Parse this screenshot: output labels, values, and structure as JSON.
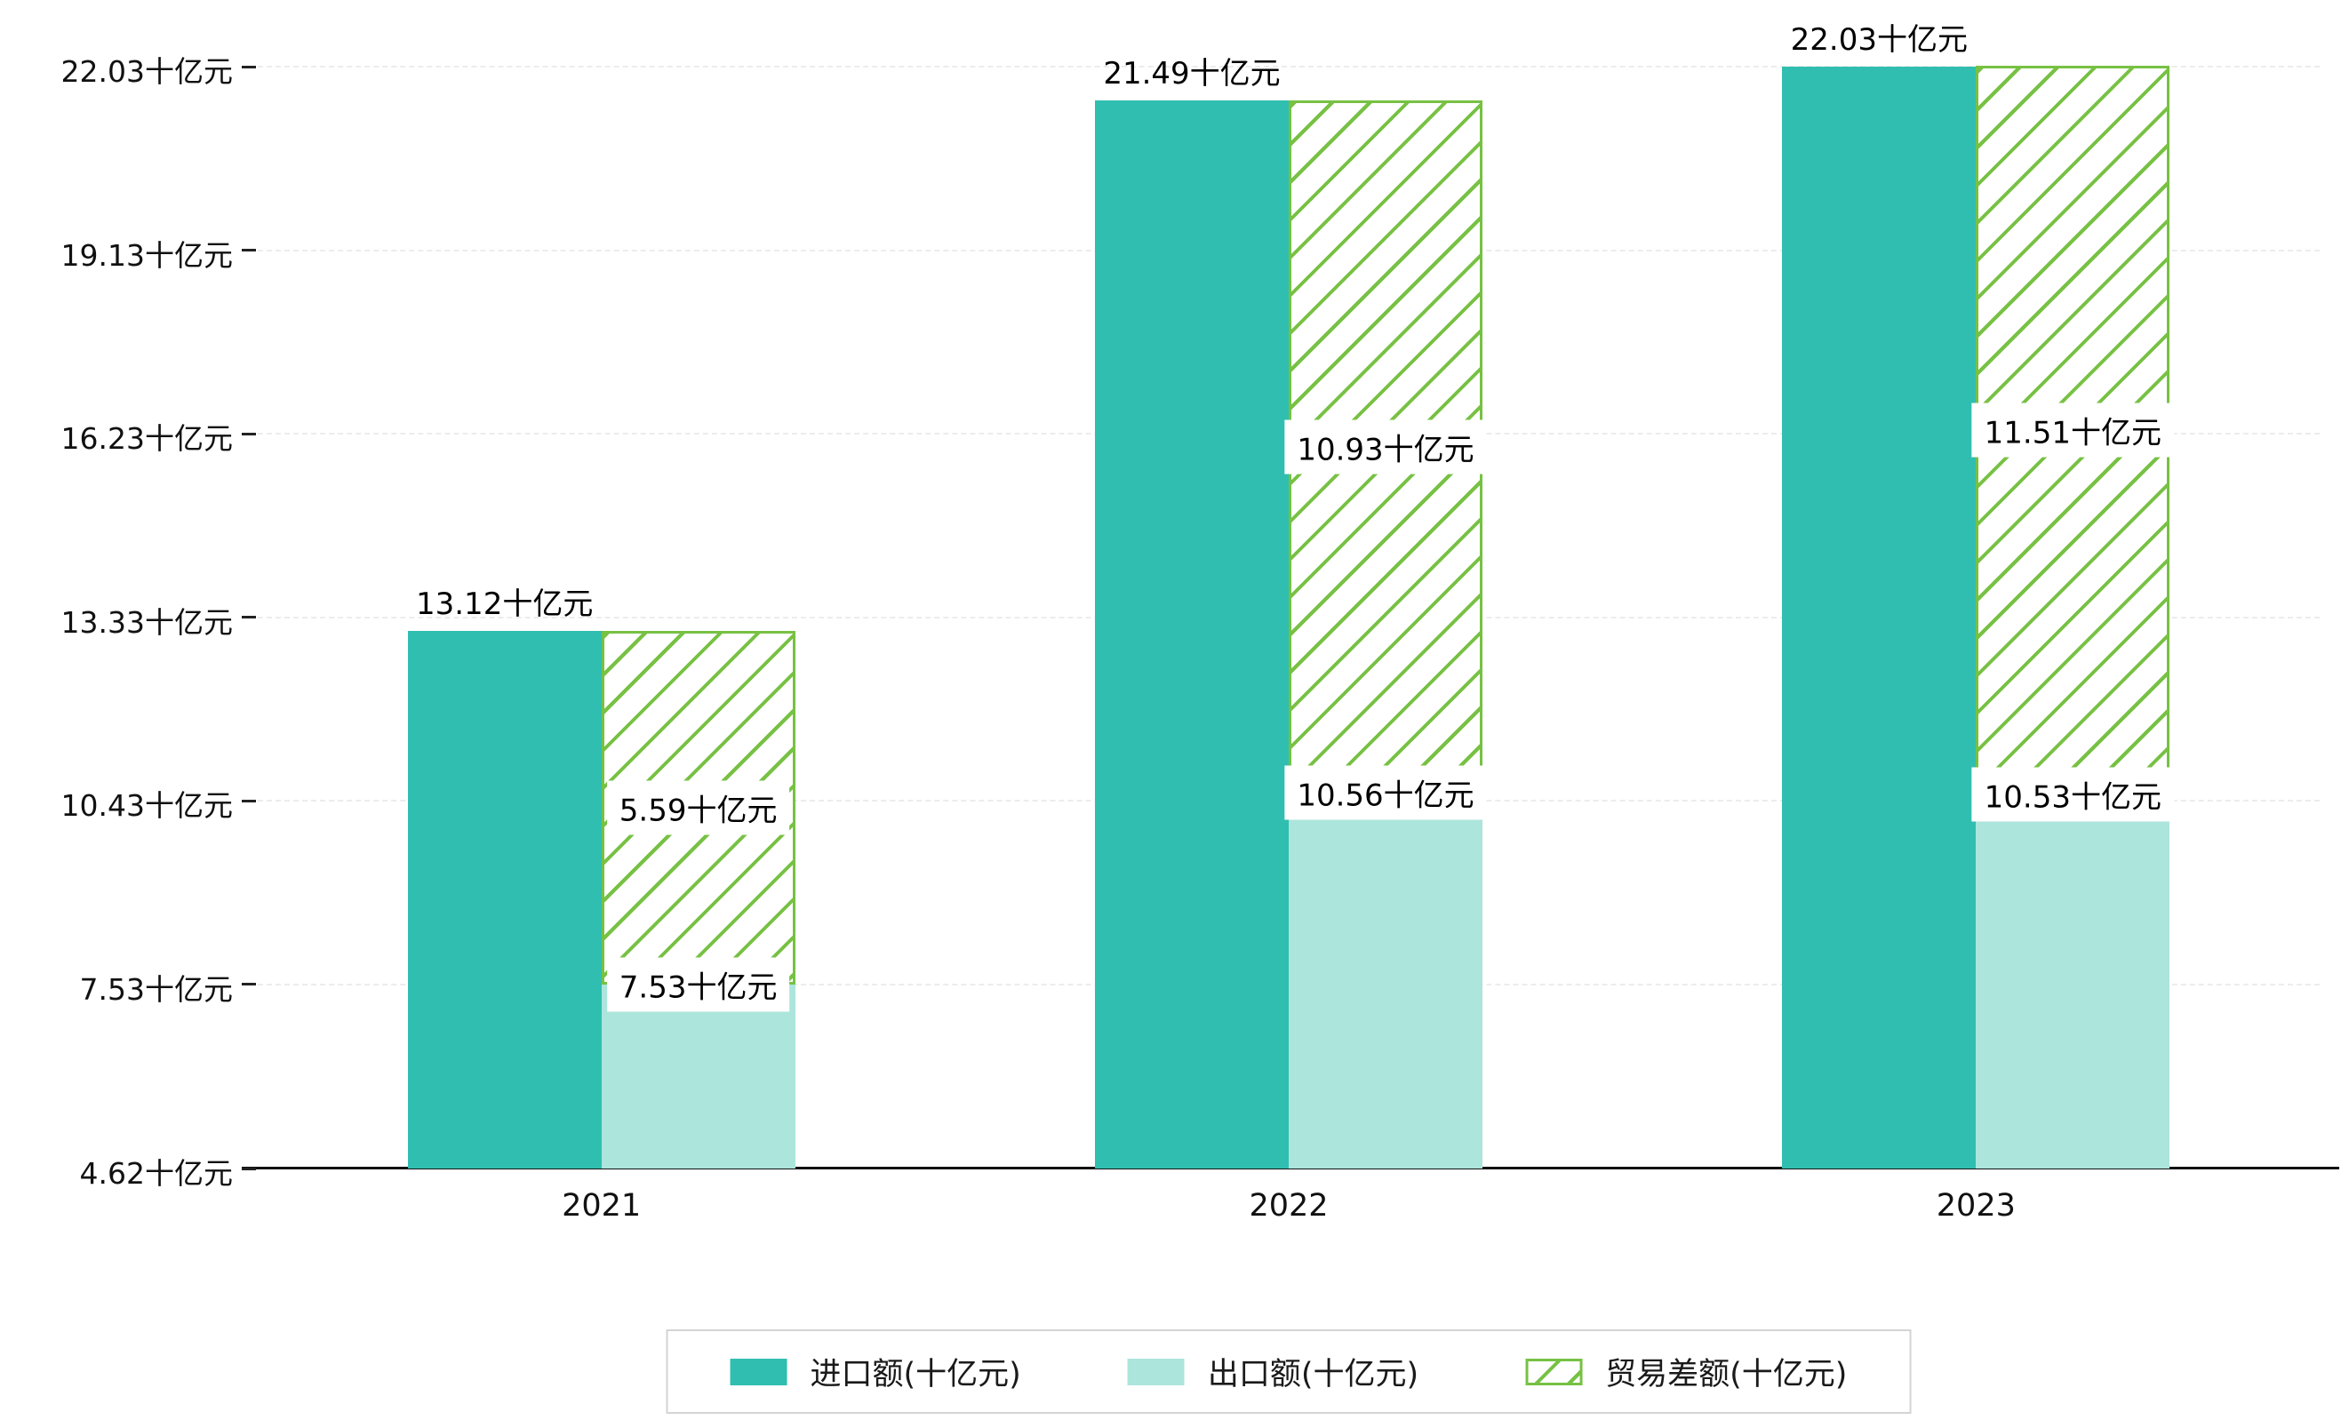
{
  "chart_data": {
    "type": "bar",
    "title": "",
    "categories": [
      "2021",
      "2022",
      "2023"
    ],
    "series": [
      {
        "name": "进口额(十亿元)",
        "key": "import",
        "values": [
          13.12,
          21.49,
          22.03
        ],
        "color": "#30beb1",
        "style": "solid"
      },
      {
        "name": "出口额(十亿元)",
        "key": "export",
        "values": [
          7.53,
          10.56,
          10.53
        ],
        "color": "#ace5dc",
        "style": "solid"
      },
      {
        "name": "贸易差额(十亿元)",
        "key": "trade_balance",
        "values": [
          5.59,
          10.93,
          11.51
        ],
        "color": "#77c143",
        "style": "hatched",
        "stacked_on": "export"
      }
    ],
    "value_labels": {
      "import": [
        "13.12十亿元",
        "21.49十亿元",
        "22.03十亿元"
      ],
      "export": [
        "7.53十亿元",
        "10.56十亿元",
        "10.53十亿元"
      ],
      "trade_balance": [
        "5.59十亿元",
        "10.93十亿元",
        "11.51十亿元"
      ]
    },
    "y_ticks": [
      {
        "value": 4.62,
        "label": "4.62十亿元"
      },
      {
        "value": 7.53,
        "label": "7.53十亿元"
      },
      {
        "value": 10.43,
        "label": "10.43十亿元"
      },
      {
        "value": 13.33,
        "label": "13.33十亿元"
      },
      {
        "value": 16.23,
        "label": "16.23十亿元"
      },
      {
        "value": 19.13,
        "label": "19.13十亿元"
      },
      {
        "value": 22.03,
        "label": "22.03十亿元"
      }
    ],
    "ylim": [
      4.62,
      22.03
    ],
    "unit": "十亿元",
    "grid": "dashed-horizontal",
    "legend_position": "bottom-center"
  },
  "colors": {
    "import_bar": "#30beb1",
    "export_bar": "#ace5dc",
    "trade_balance": "#77c143",
    "gridline": "#ececec",
    "axis": "#111111",
    "background": "#ffffff",
    "label_box_background": "#ffffff"
  }
}
